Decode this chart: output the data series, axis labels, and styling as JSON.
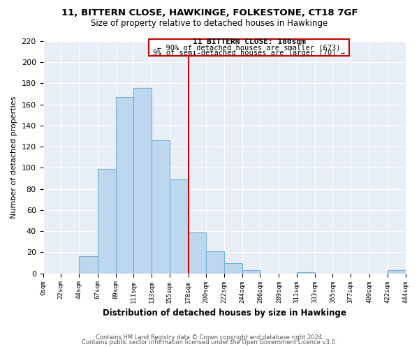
{
  "title1": "11, BITTERN CLOSE, HAWKINGE, FOLKESTONE, CT18 7GF",
  "title2": "Size of property relative to detached houses in Hawkinge",
  "xlabel": "Distribution of detached houses by size in Hawkinge",
  "ylabel": "Number of detached properties",
  "bar_color": "#bdd7ee",
  "bar_edge_color": "#7ab0d4",
  "bin_edges": [
    0,
    22,
    44,
    67,
    89,
    111,
    133,
    155,
    178,
    200,
    222,
    244,
    266,
    289,
    311,
    333,
    355,
    377,
    400,
    422,
    444
  ],
  "bin_labels": [
    "0sqm",
    "22sqm",
    "44sqm",
    "67sqm",
    "89sqm",
    "111sqm",
    "133sqm",
    "155sqm",
    "178sqm",
    "200sqm",
    "222sqm",
    "244sqm",
    "266sqm",
    "289sqm",
    "311sqm",
    "333sqm",
    "355sqm",
    "377sqm",
    "400sqm",
    "422sqm",
    "444sqm"
  ],
  "counts": [
    0,
    0,
    16,
    99,
    167,
    176,
    126,
    89,
    39,
    21,
    10,
    3,
    0,
    0,
    1,
    0,
    0,
    0,
    0,
    3
  ],
  "vline_x": 178,
  "vline_color": "#cc0000",
  "annotation_title": "11 BITTERN CLOSE: 180sqm",
  "annotation_line1": "← 90% of detached houses are smaller (673)",
  "annotation_line2": "9% of semi-detached houses are larger (70) →",
  "ylim": [
    0,
    220
  ],
  "yticks": [
    0,
    20,
    40,
    60,
    80,
    100,
    120,
    140,
    160,
    180,
    200,
    220
  ],
  "footer1": "Contains HM Land Registry data © Crown copyright and database right 2024.",
  "footer2": "Contains public sector information licensed under the Open Government Licence v3.0.",
  "background_color": "#e8eef5"
}
